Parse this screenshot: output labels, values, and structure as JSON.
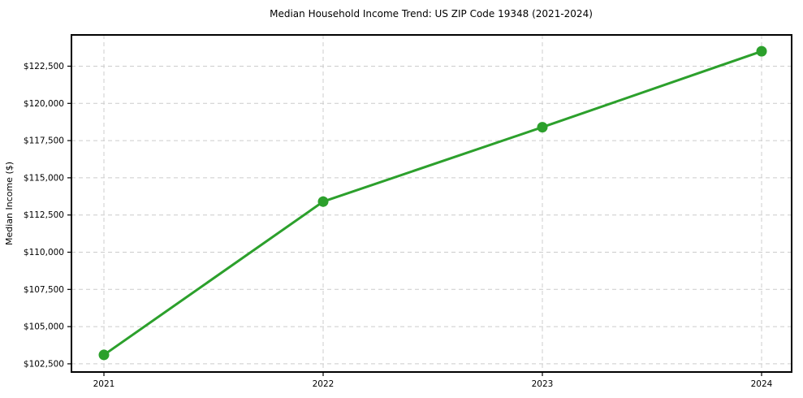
{
  "chart_data": {
    "type": "line",
    "title": "Median Household Income Trend: US ZIP Code 19348 (2021-2024)",
    "xlabel": "",
    "ylabel": "Median Income ($)",
    "x": [
      2021,
      2022,
      2023,
      2024
    ],
    "x_tick_labels": [
      "2021",
      "2022",
      "2023",
      "2024"
    ],
    "series": [
      {
        "name": "Median Household Income",
        "values": [
          103100,
          113400,
          118400,
          123500
        ],
        "color": "#2ca02c",
        "marker": "circle"
      }
    ],
    "y_ticks": [
      102500,
      105000,
      107500,
      110000,
      112500,
      115000,
      117500,
      120000,
      122500
    ],
    "y_tick_labels": [
      "$102,500",
      "$105,000",
      "$107,500",
      "$110,000",
      "$112,500",
      "$115,000",
      "$117,500",
      "$120,000",
      "$122,500"
    ],
    "ylim": [
      101950,
      124600
    ],
    "grid": true,
    "grid_style": "dashed",
    "legend_position": "none",
    "colors": {
      "line": "#2ca02c",
      "grid": "#cccccc",
      "spine": "#000000",
      "text": "#000000",
      "background": "#ffffff"
    }
  }
}
